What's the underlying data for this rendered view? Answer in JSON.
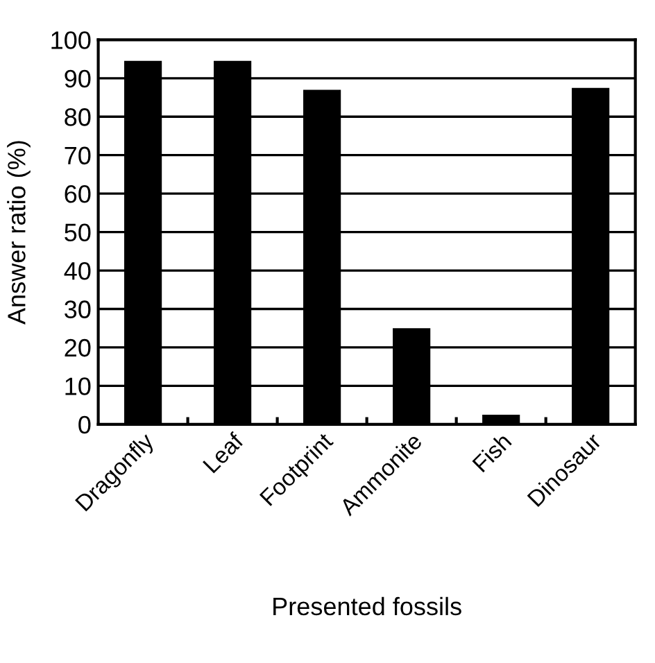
{
  "chart_data": {
    "type": "bar",
    "xlabel": "Presented fossils",
    "ylabel": "Answer ratio (%)",
    "categories": [
      "Dragonfly",
      "Leaf",
      "Footprint",
      "Ammonite",
      "Fish",
      "Dinosaur"
    ],
    "values": [
      94.5,
      94.5,
      87,
      25,
      2.5,
      87.5
    ],
    "color": "#000000",
    "ylim": [
      0,
      100
    ],
    "yticks": [
      0,
      10,
      20,
      30,
      40,
      50,
      60,
      70,
      80,
      90,
      100
    ],
    "grid": "y"
  }
}
